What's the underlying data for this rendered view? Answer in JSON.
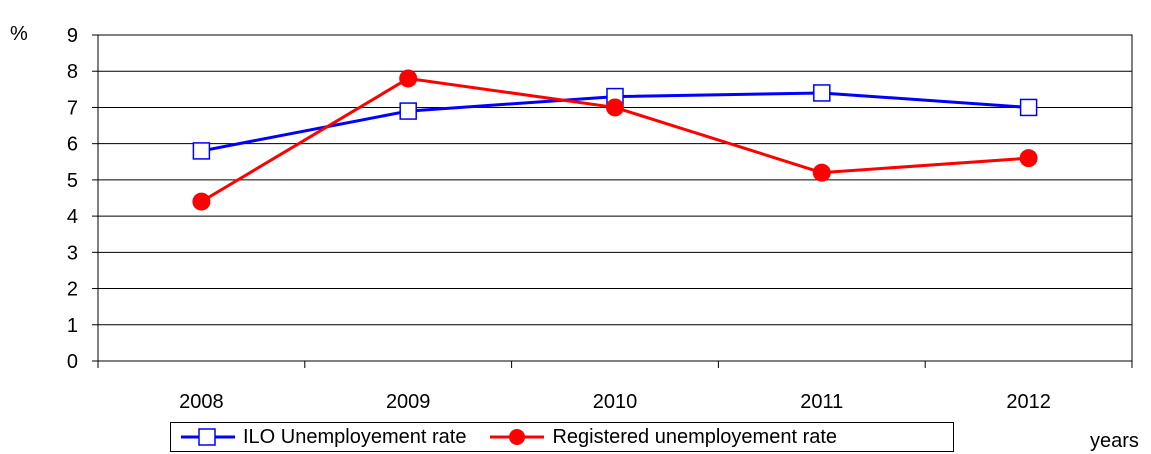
{
  "chart_data": {
    "type": "line",
    "x": [
      "2008",
      "2009",
      "2010",
      "2011",
      "2012"
    ],
    "categories": [
      "2008",
      "2009",
      "2010",
      "2011",
      "2012"
    ],
    "series": [
      {
        "name": "ILO Unemployement rate",
        "values": [
          5.8,
          6.9,
          7.3,
          7.4,
          7.0
        ],
        "color": "#0000ff",
        "marker": "open-square"
      },
      {
        "name": "Registered unemployement rate",
        "values": [
          4.4,
          7.8,
          7.0,
          5.2,
          5.6
        ],
        "color": "#ff0000",
        "marker": "filled-circle"
      }
    ],
    "ylim": [
      0,
      9
    ],
    "yticks": [
      "0",
      "1",
      "2",
      "3",
      "4",
      "5",
      "6",
      "7",
      "8",
      "9"
    ],
    "ylabel": "%",
    "xlabel": "years",
    "grid": "horizontal",
    "legend_position": "bottom"
  }
}
